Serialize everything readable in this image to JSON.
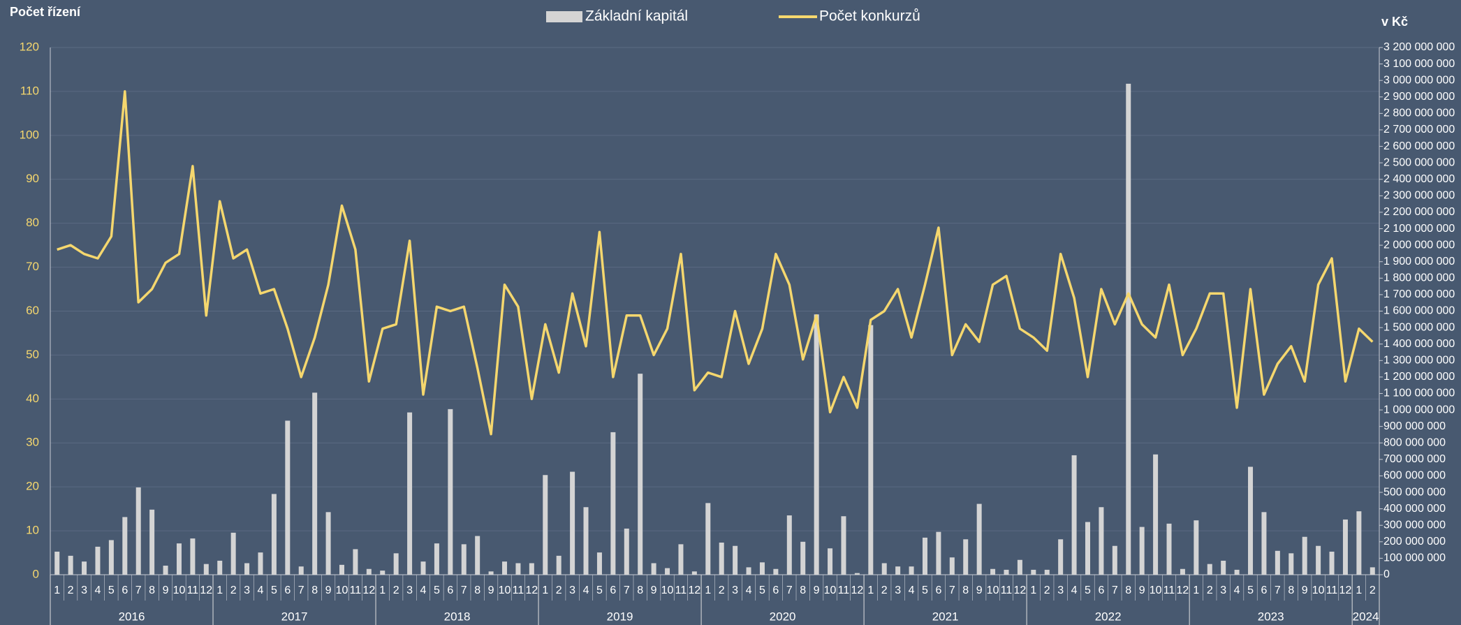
{
  "chart_data": {
    "type": "combo",
    "left_title": "Počet řízení",
    "right_title": "v Kč",
    "categories": [
      "1",
      "2",
      "3",
      "4",
      "5",
      "6",
      "7",
      "8",
      "9",
      "10",
      "11",
      "12",
      "1",
      "2",
      "3",
      "4",
      "5",
      "6",
      "7",
      "8",
      "9",
      "10",
      "11",
      "12",
      "1",
      "2",
      "3",
      "4",
      "5",
      "6",
      "7",
      "8",
      "9",
      "10",
      "11",
      "12",
      "1",
      "2",
      "3",
      "4",
      "5",
      "6",
      "7",
      "8",
      "9",
      "10",
      "11",
      "12",
      "1",
      "2",
      "3",
      "4",
      "5",
      "6",
      "7",
      "8",
      "9",
      "10",
      "11",
      "12",
      "1",
      "2",
      "3",
      "4",
      "5",
      "6",
      "7",
      "8",
      "9",
      "10",
      "11",
      "12",
      "1",
      "2",
      "3",
      "4",
      "5",
      "6",
      "7",
      "8",
      "9",
      "10",
      "11",
      "12",
      "1",
      "2",
      "3",
      "4",
      "5",
      "6",
      "7",
      "8",
      "9",
      "10",
      "11",
      "12",
      "1",
      "2"
    ],
    "years": [
      "2016",
      "2017",
      "2018",
      "2019",
      "2020",
      "2021",
      "2022",
      "2023",
      "2024"
    ],
    "series": [
      {
        "name": "Základní kapitál",
        "type": "bar",
        "axis": "y2",
        "color": "#d4d4d4",
        "values": [
          140000000,
          115000000,
          80000000,
          170000000,
          210000000,
          350000000,
          530000000,
          395000000,
          55000000,
          190000000,
          220000000,
          65000000,
          85000000,
          255000000,
          70000000,
          135000000,
          490000000,
          935000000,
          50000000,
          1105000000,
          380000000,
          60000000,
          155000000,
          35000000,
          25000000,
          130000000,
          985000000,
          80000000,
          190000000,
          1005000000,
          185000000,
          235000000,
          20000000,
          80000000,
          70000000,
          70000000,
          605000000,
          115000000,
          625000000,
          410000000,
          135000000,
          865000000,
          280000000,
          1220000000,
          70000000,
          40000000,
          185000000,
          20000000,
          435000000,
          195000000,
          175000000,
          45000000,
          75000000,
          35000000,
          360000000,
          200000000,
          1580000000,
          160000000,
          355000000,
          10000000,
          1515000000,
          70000000,
          50000000,
          50000000,
          225000000,
          260000000,
          105000000,
          215000000,
          430000000,
          35000000,
          30000000,
          90000000,
          30000000,
          30000000,
          215000000,
          725000000,
          320000000,
          410000000,
          175000000,
          2980000000,
          290000000,
          730000000,
          310000000,
          35000000,
          330000000,
          65000000,
          85000000,
          30000000,
          655000000,
          380000000,
          145000000,
          130000000,
          230000000,
          175000000,
          140000000,
          335000000,
          385000000,
          45000000
        ]
      },
      {
        "name": "Počet konkurzů",
        "type": "line",
        "axis": "y",
        "color": "#f5d76e",
        "values": [
          74,
          75,
          73,
          72,
          77,
          110,
          62,
          65,
          71,
          73,
          93,
          59,
          85,
          72,
          74,
          64,
          65,
          56,
          45,
          54,
          66,
          84,
          74,
          44,
          56,
          57,
          76,
          41,
          61,
          60,
          61,
          47,
          32,
          66,
          61,
          40,
          57,
          46,
          64,
          52,
          78,
          45,
          59,
          59,
          50,
          56,
          73,
          42,
          46,
          45,
          60,
          48,
          56,
          73,
          66,
          49,
          59,
          37,
          45,
          38,
          58,
          60,
          65,
          54,
          66,
          79,
          50,
          57,
          53,
          66,
          68,
          56,
          54,
          51,
          73,
          63,
          45,
          65,
          57,
          64,
          57,
          54,
          66,
          50,
          56,
          64,
          64,
          38,
          65,
          41,
          48,
          52,
          44,
          66,
          72,
          44,
          56,
          53
        ]
      }
    ],
    "ylim": [
      0,
      120
    ],
    "yticks": [
      0,
      10,
      20,
      30,
      40,
      50,
      60,
      70,
      80,
      90,
      100,
      110,
      120
    ],
    "y2lim": [
      0,
      3200000000
    ],
    "y2ticks": [
      0,
      {
        "value": 100000000,
        "label": "100 000 000"
      },
      {
        "value": 200000000,
        "label": "200 000 000"
      },
      {
        "value": 300000000,
        "label": "300 000 000"
      },
      {
        "value": 400000000,
        "label": "400 000 000"
      },
      {
        "value": 500000000,
        "label": "500 000 000"
      },
      {
        "value": 600000000,
        "label": "600 000 000"
      },
      {
        "value": 700000000,
        "label": "700 000 000"
      },
      {
        "value": 800000000,
        "label": "800 000 000"
      },
      {
        "value": 900000000,
        "label": "900 000 000"
      },
      {
        "value": 1000000000,
        "label": "1 000 000 000"
      },
      {
        "value": 1100000000,
        "label": "1 100 000 000"
      },
      {
        "value": 1200000000,
        "label": "1 200 000 000"
      },
      {
        "value": 1300000000,
        "label": "1 300 000 000"
      },
      {
        "value": 1400000000,
        "label": "1 400 000 000"
      },
      {
        "value": 1500000000,
        "label": "1 500 000 000"
      },
      {
        "value": 1600000000,
        "label": "1 600 000 000"
      },
      {
        "value": 1700000000,
        "label": "1 700 000 000"
      },
      {
        "value": 1800000000,
        "label": "1 800 000 000"
      },
      {
        "value": 1900000000,
        "label": "1 900 000 000"
      },
      {
        "value": 2000000000,
        "label": "2 000 000 000"
      },
      {
        "value": 2100000000,
        "label": "2 100 000 000"
      },
      {
        "value": 2200000000,
        "label": "2 200 000 000"
      },
      {
        "value": 2300000000,
        "label": "2 300 000 000"
      },
      {
        "value": 2400000000,
        "label": "2 400 000 000"
      },
      {
        "value": 2500000000,
        "label": "2 500 000 000"
      },
      {
        "value": 2600000000,
        "label": "2 600 000 000"
      },
      {
        "value": 2700000000,
        "label": "2 700 000 000"
      },
      {
        "value": 2800000000,
        "label": "2 800 000 000"
      },
      {
        "value": 2900000000,
        "label": "2 900 000 000"
      },
      {
        "value": 3000000000,
        "label": "3 000 000 000"
      },
      {
        "value": 3100000000,
        "label": "3 100 000 000"
      },
      {
        "value": 3200000000,
        "label": "3 200 000 000"
      }
    ],
    "grid": true,
    "legend": "top"
  }
}
